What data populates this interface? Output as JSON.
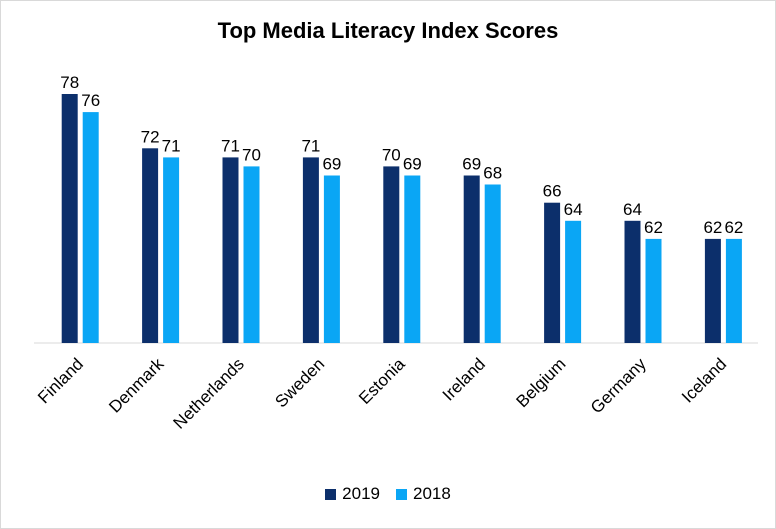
{
  "chart_data": {
    "type": "bar",
    "title": "Top Media Literacy Index Scores",
    "categories": [
      "Finland",
      "Denmark",
      "Netherlands",
      "Sweden",
      "Estonia",
      "Ireland",
      "Belgium",
      "Germany",
      "Iceland"
    ],
    "series": [
      {
        "name": "2019",
        "color": "#0c2f6b",
        "values": [
          78,
          72,
          71,
          71,
          70,
          69,
          66,
          64,
          62
        ]
      },
      {
        "name": "2018",
        "color": "#0aa6f5",
        "values": [
          76,
          71,
          70,
          69,
          69,
          68,
          64,
          62,
          62
        ]
      }
    ],
    "ylim": [
      50.5,
      78
    ],
    "grid": false,
    "legend": "bottom"
  }
}
